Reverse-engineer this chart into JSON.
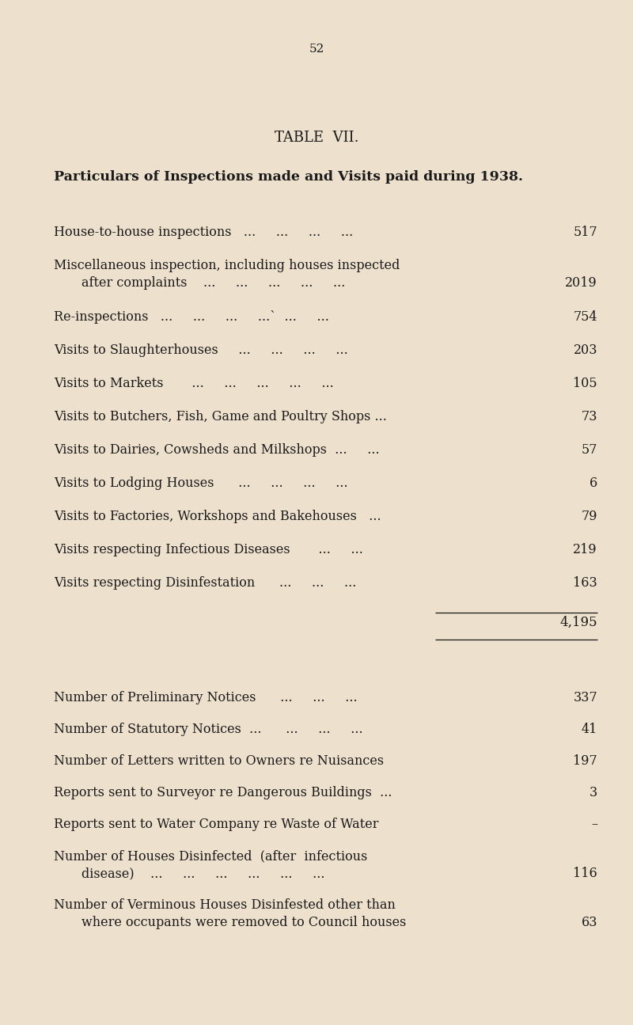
{
  "page_number": "52",
  "title": "TABLE  VII.",
  "subtitle": "Particulars of Inspections made and Visits paid during 1938.",
  "background_color": "#ede0cc",
  "text_color": "#1a1a1a",
  "rows_section1": [
    {
      "label": "House-to-house inspections   ...     ...     ...     ...",
      "value": "517",
      "multiline": false
    },
    {
      "label": "Miscellaneous inspection, including houses inspected",
      "label2": "after complaints    ...     ...     ...     ...     ...",
      "value": "2019",
      "multiline": true
    },
    {
      "label": "Re-inspections   ...     ...     ...     ...`  ...     ...",
      "value": "754",
      "multiline": false
    },
    {
      "label": "Visits to Slaughterhouses     ...     ...     ...     ...",
      "value": "203",
      "multiline": false
    },
    {
      "label": "Visits to Markets       ...     ...     ...     ...     ...",
      "value": "105",
      "multiline": false
    },
    {
      "label": "Visits to Butchers, Fish, Game and Poultry Shops ...",
      "value": "73",
      "multiline": false
    },
    {
      "label": "Visits to Dairies, Cowsheds and Milkshops  ...     ...",
      "value": "57",
      "multiline": false
    },
    {
      "label": "Visits to Lodging Houses      ...     ...     ...     ...",
      "value": "6",
      "multiline": false
    },
    {
      "label": "Visits to Factories, Workshops and Bakehouses   ...",
      "value": "79",
      "multiline": false
    },
    {
      "label": "Visits respecting Infectious Diseases       ...     ...",
      "value": "219",
      "multiline": false
    },
    {
      "label": "Visits respecting Disinfestation      ...     ...     ...",
      "value": "163",
      "multiline": false
    }
  ],
  "total_value": "4,195",
  "rows_section2": [
    {
      "label": "Number of Preliminary Notices      ...     ...     ...",
      "value": "337",
      "multiline": false
    },
    {
      "label": "Number of Statutory Notices  ...      ...     ...     ...",
      "value": "41",
      "multiline": false
    },
    {
      "label": "Number of Letters written to Owners re Nuisances",
      "value": "197",
      "multiline": false
    },
    {
      "label": "Reports sent to Surveyor re Dangerous Buildings  ...",
      "value": "3",
      "multiline": false
    },
    {
      "label": "Reports sent to Water Company re Waste of Water",
      "value": "–",
      "multiline": false
    },
    {
      "label": "Number of Houses Disinfected  (after  infectious",
      "label2": "disease)    ...     ...     ...     ...     ...     ...",
      "value": "116",
      "multiline": true
    },
    {
      "label": "Number of Verminous Houses Disinfested other than",
      "label2": "where occupants were removed to Council houses",
      "value": "63",
      "multiline": true
    }
  ]
}
